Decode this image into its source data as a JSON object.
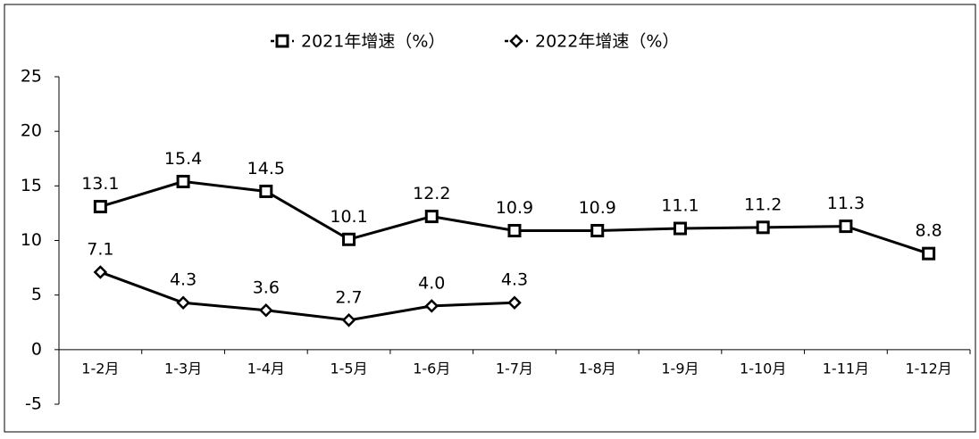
{
  "chart_data": {
    "type": "line",
    "categories": [
      "1-2月",
      "1-3月",
      "1-4月",
      "1-5月",
      "1-6月",
      "1-7月",
      "1-8月",
      "1-9月",
      "1-10月",
      "1-11月",
      "1-12月"
    ],
    "series": [
      {
        "name": "2021年增速（%）",
        "color": "#000000",
        "marker": "square",
        "values": [
          13.1,
          15.4,
          14.5,
          10.1,
          12.2,
          10.9,
          10.9,
          11.1,
          11.2,
          11.3,
          8.8
        ]
      },
      {
        "name": "2022年增速（%）",
        "color": "#000000",
        "marker": "diamond",
        "values": [
          7.1,
          4.3,
          3.6,
          2.7,
          4.0,
          4.3,
          null,
          null,
          null,
          null,
          null
        ],
        "value_labels": [
          "7.1",
          "4.3",
          "3.6",
          "2.7",
          "4.0",
          "4.3",
          null,
          null,
          null,
          null,
          null
        ]
      }
    ],
    "ylim": [
      -5,
      25
    ],
    "yticks": [
      -5,
      0,
      5,
      10,
      15,
      20,
      25
    ],
    "legend": "top",
    "grid": false
  }
}
